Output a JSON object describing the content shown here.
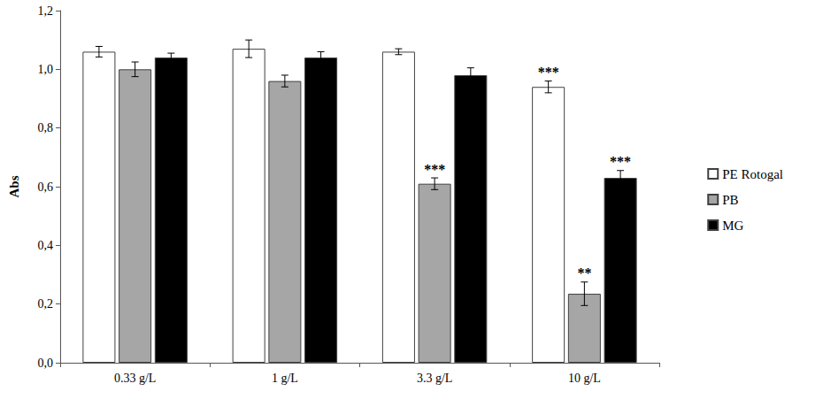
{
  "chart_data": {
    "type": "bar",
    "y_label": "Abs",
    "categories": [
      "0.33 g/L",
      "1 g/L",
      "3.3 g/L",
      "10 g/L"
    ],
    "series": [
      {
        "name": "PE Rotogal",
        "color": "#ffffff",
        "values": [
          1.06,
          1.07,
          1.06,
          0.94
        ],
        "errors": [
          0.018,
          0.03,
          0.01,
          0.02
        ],
        "significance": [
          null,
          null,
          null,
          "***"
        ]
      },
      {
        "name": "PB",
        "color": "#a6a6a6",
        "values": [
          1.0,
          0.96,
          0.61,
          0.235
        ],
        "errors": [
          0.025,
          0.02,
          0.02,
          0.04
        ],
        "significance": [
          null,
          null,
          "***",
          "**"
        ]
      },
      {
        "name": "MG",
        "color": "#000000",
        "values": [
          1.04,
          1.04,
          0.98,
          0.63
        ],
        "errors": [
          0.015,
          0.02,
          0.025,
          0.025
        ],
        "significance": [
          null,
          null,
          null,
          "***"
        ]
      }
    ],
    "ylim": [
      0,
      1.2
    ],
    "yticks": [
      {
        "value": 0,
        "label": "0,0"
      },
      {
        "value": 0.2,
        "label": "0,2"
      },
      {
        "value": 0.4,
        "label": "0,4"
      },
      {
        "value": 0.6,
        "label": "0,6"
      },
      {
        "value": 0.8,
        "label": "0,8"
      },
      {
        "value": 1.0,
        "label": "1,0"
      },
      {
        "value": 1.2,
        "label": "1,2"
      }
    ],
    "grid": false,
    "legend": "right"
  }
}
